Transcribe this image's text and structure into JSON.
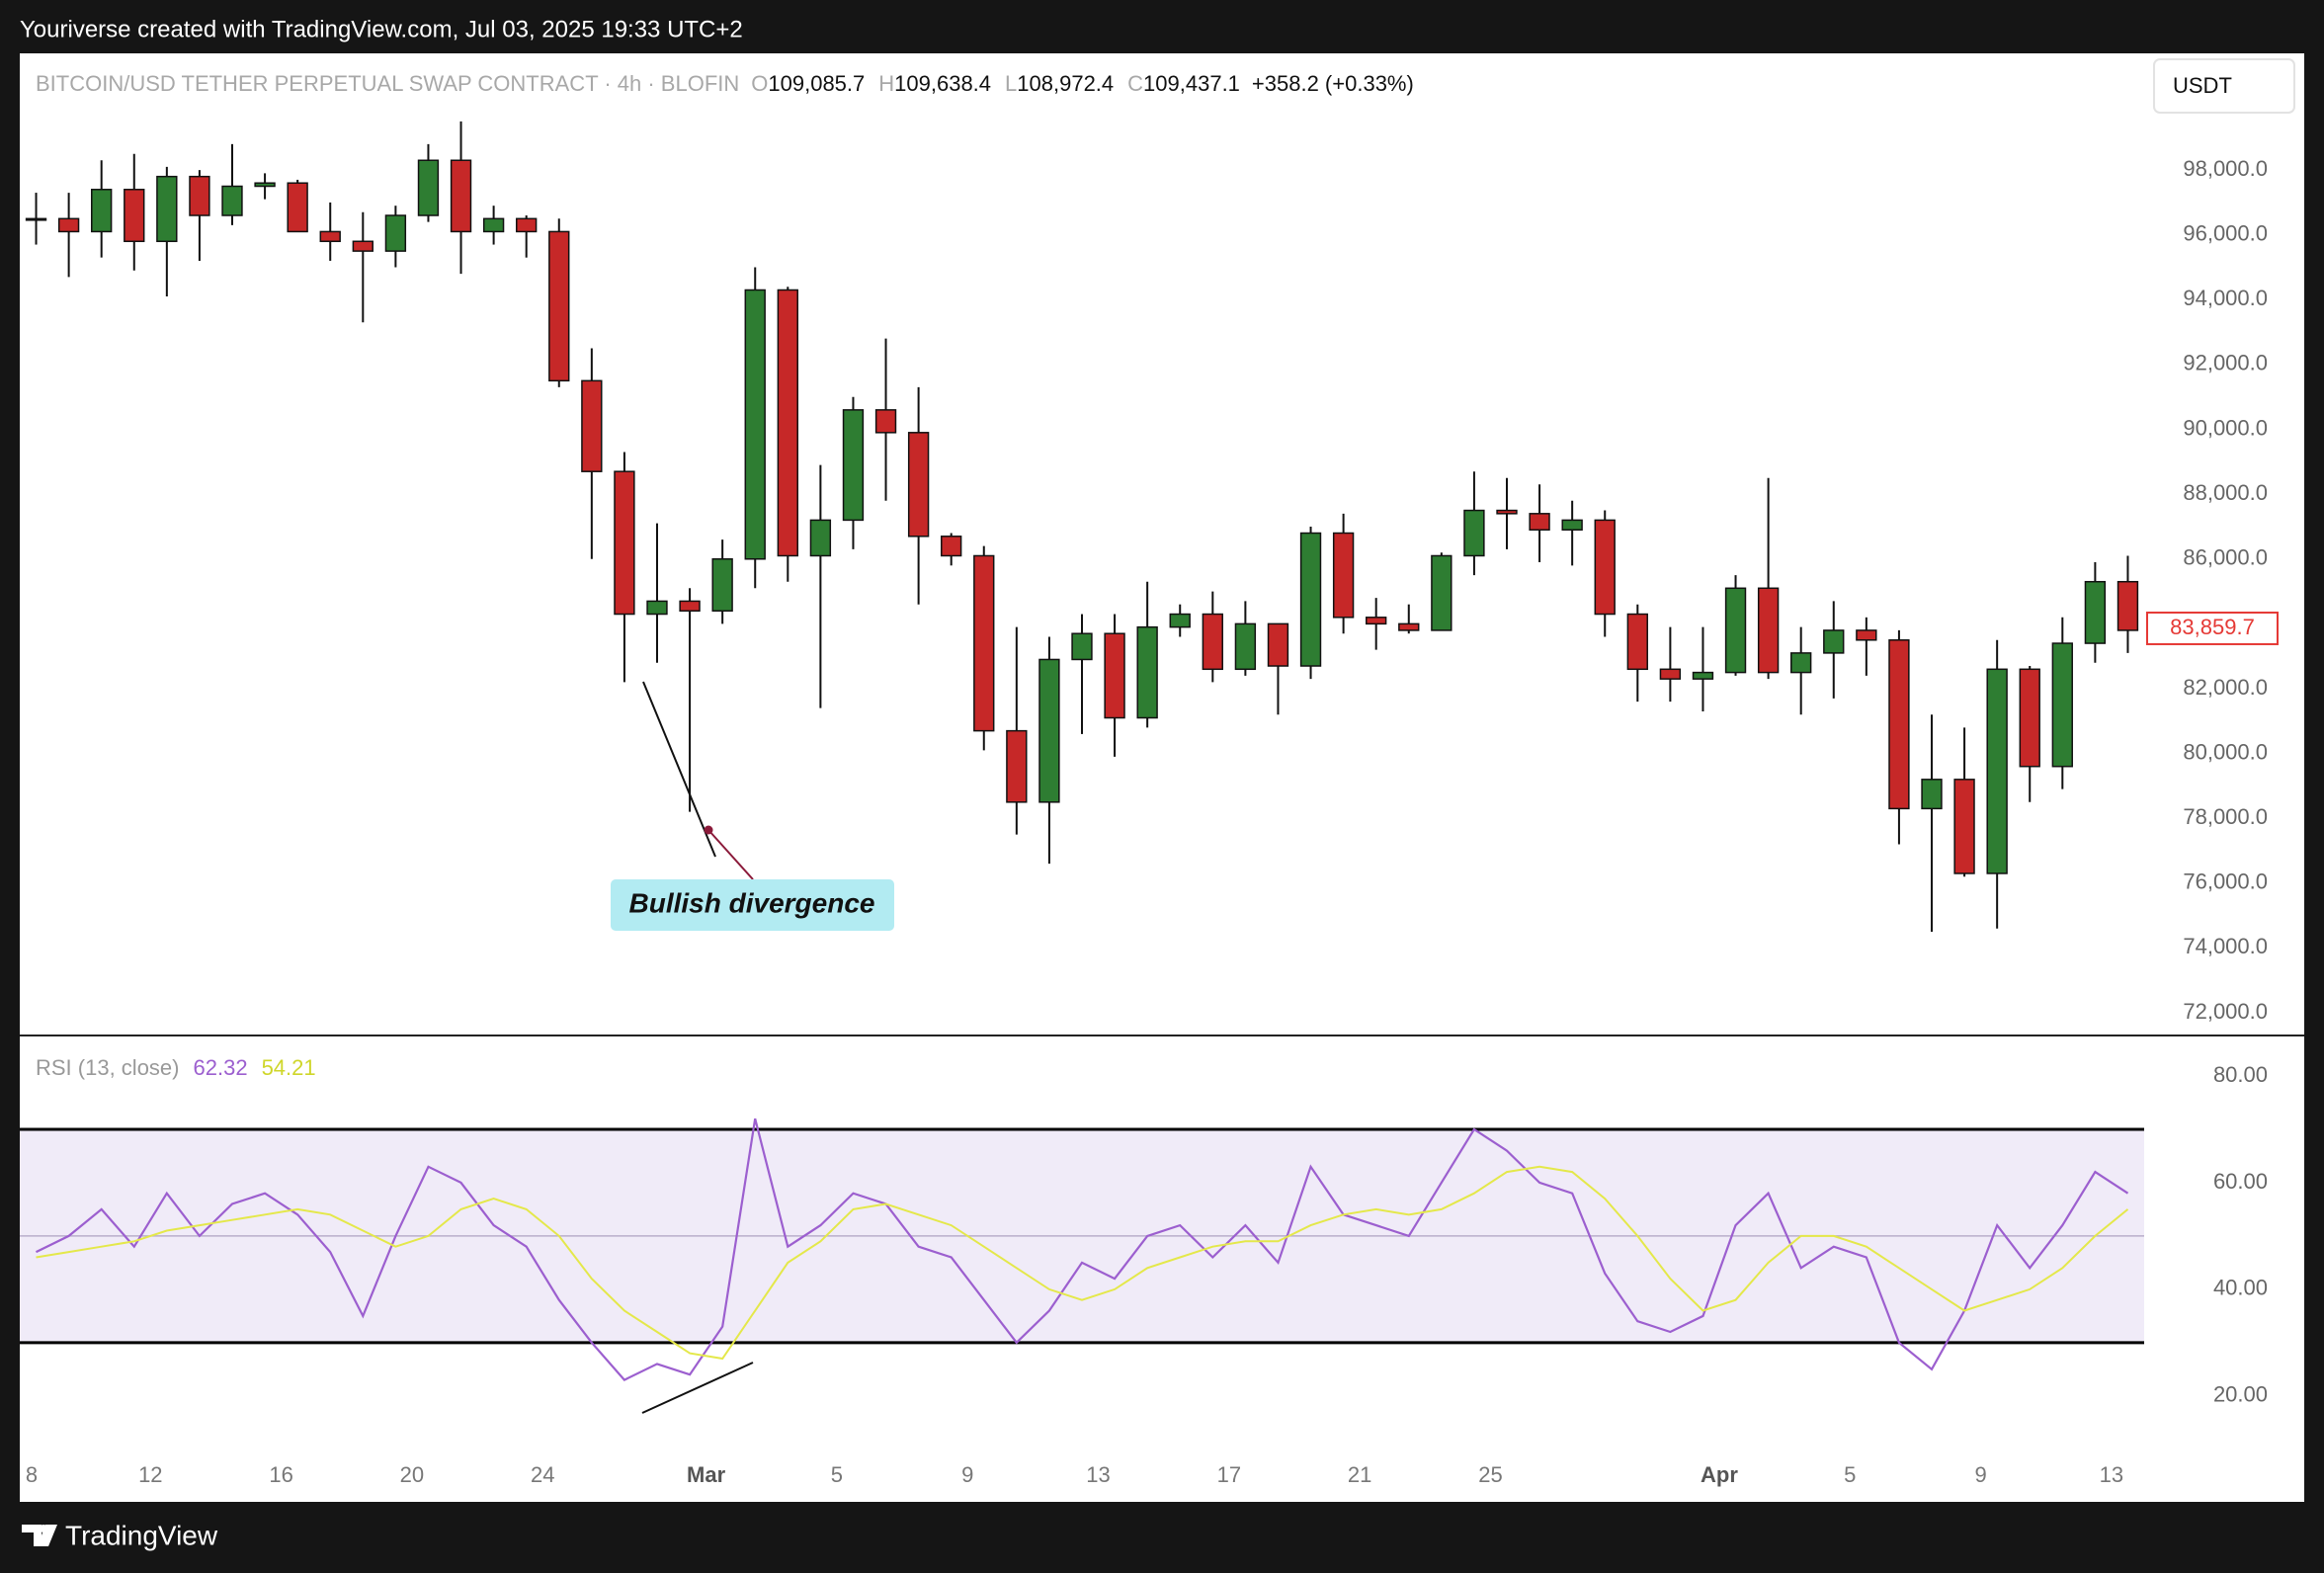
{
  "header": {
    "credit": "Youriverse created with TradingView.com, Jul 03, 2025 19:33 UTC+2"
  },
  "footer": {
    "logo": "TradingView"
  },
  "controls": {
    "currency": "USDT"
  },
  "chart_data": [
    {
      "type": "candlestick",
      "symbol": "BITCOIN/USD TETHER PERPETUAL SWAP CONTRACT · 4h · BLOFIN",
      "ohlc_legend": [
        {
          "key": "O",
          "value": "109,085.7"
        },
        {
          "key": "H",
          "value": "109,638.4"
        },
        {
          "key": "L",
          "value": "108,972.4"
        },
        {
          "key": "C",
          "value": "109,437.1"
        }
      ],
      "change": "+358.2 (+0.33%)",
      "annotation": "Bullish divergence",
      "up_color": "#2e7d32",
      "down_color": "#c62828",
      "x": [
        "02-08",
        "02-09",
        "02-10",
        "02-11",
        "02-12",
        "02-13",
        "02-14",
        "02-15",
        "02-16",
        "02-17",
        "02-18",
        "02-19",
        "02-20",
        "02-21",
        "02-22",
        "02-23",
        "02-24",
        "02-25",
        "02-26",
        "02-27",
        "02-28",
        "03-01",
        "03-02",
        "03-03",
        "03-04",
        "03-05",
        "03-06",
        "03-07",
        "03-08",
        "03-09",
        "03-10",
        "03-11",
        "03-12",
        "03-13",
        "03-14",
        "03-15",
        "03-16",
        "03-17",
        "03-18",
        "03-19",
        "03-20",
        "03-21",
        "03-22",
        "03-23",
        "03-24",
        "03-25",
        "03-26",
        "03-27",
        "03-28",
        "03-29",
        "03-30",
        "03-31",
        "04-01",
        "04-02",
        "04-03",
        "04-04",
        "04-05",
        "04-06",
        "04-07",
        "04-08",
        "04-09",
        "04-10",
        "04-11",
        "04-12",
        "04-13"
      ],
      "open": [
        96500,
        96500,
        96100,
        97400,
        95800,
        97800,
        96600,
        97500,
        97600,
        96100,
        95800,
        95500,
        96600,
        98300,
        96100,
        96500,
        96100,
        91500,
        88700,
        84300,
        84700,
        84400,
        86000,
        94300,
        86100,
        87200,
        90600,
        89900,
        86700,
        86100,
        80700,
        78500,
        82900,
        83700,
        81100,
        83900,
        84300,
        82600,
        84000,
        82700,
        86800,
        84200,
        84000,
        83800,
        86100,
        87500,
        87400,
        86900,
        87200,
        84300,
        82600,
        82300,
        82500,
        85100,
        82500,
        83100,
        83800,
        83500,
        78300,
        79200,
        76300,
        82600,
        79600,
        83400,
        85300
      ],
      "high": [
        97300,
        97300,
        98300,
        98500,
        98100,
        98000,
        98800,
        97900,
        97700,
        97000,
        96700,
        96900,
        98800,
        99500,
        96900,
        96600,
        96500,
        92500,
        89300,
        87100,
        85100,
        86600,
        95000,
        94400,
        88900,
        91000,
        92800,
        91300,
        86800,
        86400,
        83900,
        83600,
        84300,
        84300,
        85300,
        84600,
        85000,
        84700,
        84000,
        87000,
        87400,
        84800,
        84600,
        86200,
        88700,
        88500,
        88300,
        87800,
        87500,
        84600,
        83900,
        83900,
        85500,
        88500,
        83900,
        84700,
        84200,
        83800,
        81200,
        80800,
        83500,
        82700,
        84200,
        85900,
        86100
      ],
      "low": [
        95700,
        94700,
        95300,
        94900,
        94100,
        95200,
        96300,
        97100,
        96100,
        95200,
        93300,
        95000,
        96400,
        94800,
        95700,
        95300,
        91300,
        86000,
        82200,
        82800,
        78200,
        84000,
        85100,
        85300,
        81400,
        86300,
        87800,
        84600,
        85800,
        80100,
        77500,
        76600,
        80600,
        79900,
        80800,
        83600,
        82200,
        82400,
        81200,
        82300,
        83700,
        83200,
        83700,
        83800,
        85500,
        86300,
        85900,
        85800,
        83600,
        81600,
        81600,
        81300,
        82400,
        82300,
        81200,
        81700,
        82400,
        77200,
        74500,
        76200,
        74600,
        78500,
        78900,
        82800,
        83100
      ],
      "close": [
        96500,
        96100,
        97400,
        95800,
        97800,
        96600,
        97500,
        97600,
        96100,
        95800,
        95500,
        96600,
        98300,
        96100,
        96500,
        96100,
        91500,
        88700,
        84300,
        84700,
        84400,
        86000,
        94300,
        86100,
        87200,
        90600,
        89900,
        86700,
        86100,
        80700,
        78500,
        82900,
        83700,
        81100,
        83900,
        84300,
        82600,
        84000,
        82700,
        86800,
        84200,
        84000,
        83800,
        86100,
        87500,
        87400,
        86900,
        87200,
        84300,
        82600,
        82300,
        82500,
        85100,
        82500,
        83100,
        83800,
        83500,
        78300,
        79200,
        76300,
        82600,
        79600,
        83400,
        85300,
        83800
      ],
      "last_price": {
        "value": 83859.7,
        "label": "83,859.7"
      },
      "xlim": [
        "02-08",
        "04-14"
      ],
      "xticks": [
        {
          "value": "02-08",
          "label": "8"
        },
        {
          "value": "02-12",
          "label": "12"
        },
        {
          "value": "02-16",
          "label": "16"
        },
        {
          "value": "02-20",
          "label": "20"
        },
        {
          "value": "02-24",
          "label": "24"
        },
        {
          "value": "03-01",
          "label": "Mar"
        },
        {
          "value": "03-05",
          "label": "5"
        },
        {
          "value": "03-09",
          "label": "9"
        },
        {
          "value": "03-13",
          "label": "13"
        },
        {
          "value": "03-17",
          "label": "17"
        },
        {
          "value": "03-21",
          "label": "21"
        },
        {
          "value": "03-25",
          "label": "25"
        },
        {
          "value": "04-01",
          "label": "Apr"
        },
        {
          "value": "04-05",
          "label": "5"
        },
        {
          "value": "04-09",
          "label": "9"
        },
        {
          "value": "04-13",
          "label": "13"
        }
      ],
      "ylim": [
        71300,
        101600
      ],
      "yticks": [
        {
          "value": 98000,
          "label": "98,000.0"
        },
        {
          "value": 96000,
          "label": "96,000.0"
        },
        {
          "value": 94000,
          "label": "94,000.0"
        },
        {
          "value": 92000,
          "label": "92,000.0"
        },
        {
          "value": 90000,
          "label": "90,000.0"
        },
        {
          "value": 88000,
          "label": "88,000.0"
        },
        {
          "value": 86000,
          "label": "86,000.0"
        },
        {
          "value": 82000,
          "label": "82,000.0"
        },
        {
          "value": 80000,
          "label": "80,000.0"
        },
        {
          "value": 78000,
          "label": "78,000.0"
        },
        {
          "value": 76000,
          "label": "76,000.0"
        },
        {
          "value": 74000,
          "label": "74,000.0"
        },
        {
          "value": 72000,
          "label": "72,000.0"
        }
      ],
      "grid": false
    },
    {
      "type": "line",
      "title": "RSI (13, close)",
      "series": [
        {
          "legend_value": "62.32",
          "color": "#9c5fcf",
          "values": [
            47,
            50,
            55,
            48,
            58,
            50,
            56,
            58,
            54,
            47,
            35,
            50,
            63,
            60,
            52,
            48,
            38,
            30,
            23,
            26,
            24,
            33,
            72,
            48,
            52,
            58,
            56,
            48,
            46,
            38,
            30,
            36,
            45,
            42,
            50,
            52,
            46,
            52,
            45,
            63,
            54,
            52,
            50,
            60,
            70,
            66,
            60,
            58,
            43,
            34,
            32,
            35,
            52,
            58,
            44,
            48,
            46,
            30,
            25,
            36,
            52,
            44,
            52,
            62,
            58
          ]
        },
        {
          "legend_value": "54.21",
          "color": "#e4e84a",
          "values": [
            46,
            47,
            48,
            49,
            51,
            52,
            53,
            54,
            55,
            54,
            51,
            48,
            50,
            55,
            57,
            55,
            50,
            42,
            36,
            32,
            28,
            27,
            36,
            45,
            49,
            55,
            56,
            54,
            52,
            48,
            44,
            40,
            38,
            40,
            44,
            46,
            48,
            49,
            49,
            52,
            54,
            55,
            54,
            55,
            58,
            62,
            63,
            62,
            57,
            50,
            42,
            36,
            38,
            45,
            50,
            50,
            48,
            44,
            40,
            36,
            38,
            40,
            44,
            50,
            55
          ]
        }
      ],
      "bands": {
        "upper": 70,
        "middle": 50,
        "lower": 30
      },
      "ylim": [
        9.4,
        87.6
      ],
      "yticks": [
        {
          "value": 80,
          "label": "80.00"
        },
        {
          "value": 60,
          "label": "60.00"
        },
        {
          "value": 40,
          "label": "40.00"
        },
        {
          "value": 20,
          "label": "20.00"
        }
      ]
    }
  ]
}
